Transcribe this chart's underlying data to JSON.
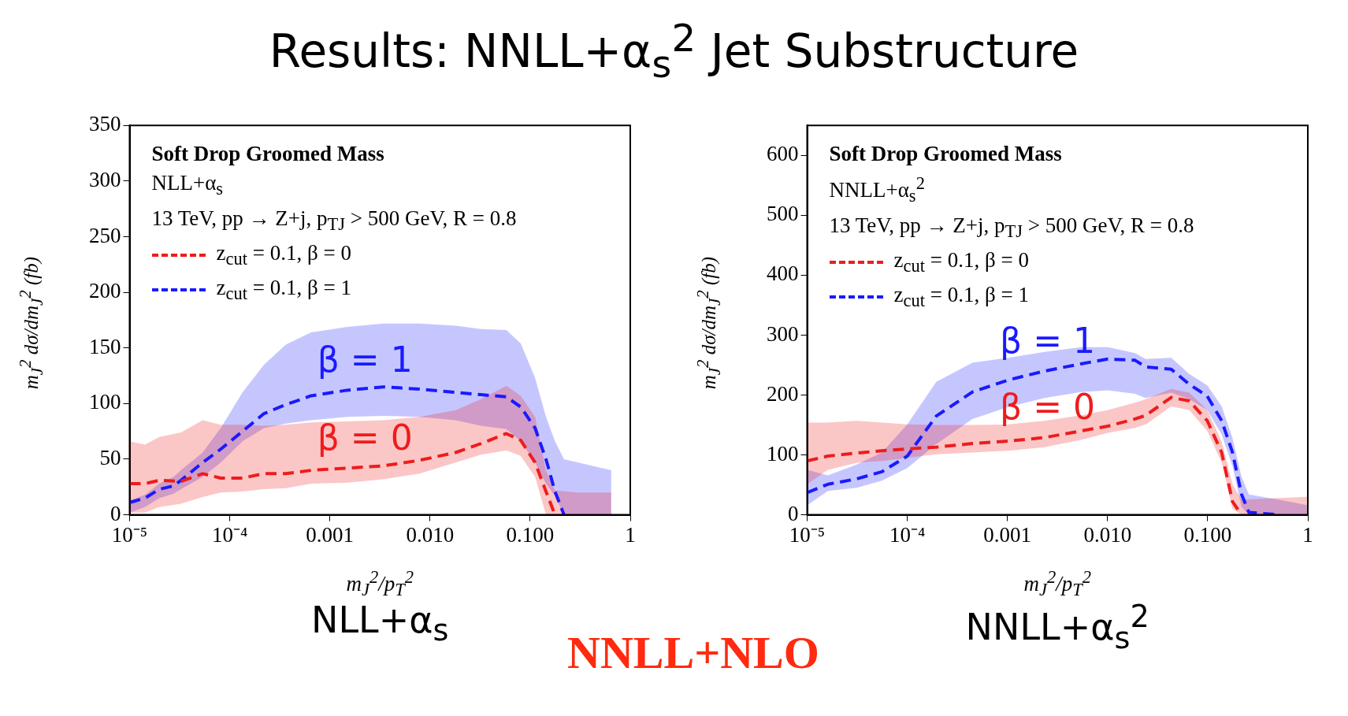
{
  "chart_data": [
    {
      "type": "other",
      "title": "Results: NNLL+α$_{s}$$^{2}$ Jet Substructure",
      "annotations": [
        "NNLL+NLO"
      ]
    },
    {
      "type": "line",
      "title": "Soft Drop Groomed Mass",
      "subtitle": "NLL+α$_{s}$",
      "xlabel": "m$_{J}$$^{2}$/p$_{T}$$^{2}$",
      "ylabel": "m$_{J}$$^{2}$ dσ/dm$_{J}$$^{2}$ (fb)",
      "log": "x",
      "grid": false,
      "legend": "top left",
      "xlim": [
        1e-05,
        1
      ],
      "xticks": [
        {
          "value": 1e-05,
          "label": "10⁻⁵"
        },
        {
          "value": 0.0001,
          "label": "10⁻⁴"
        },
        {
          "value": 0.001,
          "label": "0.001"
        },
        {
          "value": 0.01,
          "label": "0.010"
        },
        {
          "value": 0.1,
          "label": "0.100"
        },
        {
          "value": 1,
          "label": "1"
        }
      ],
      "ylim": [
        0,
        350
      ],
      "yticks": [
        0,
        50,
        100,
        150,
        200,
        250,
        300,
        350
      ],
      "series": [
        {
          "name": "z$_{cut}$ = 0.1, β = 0",
          "color": "#ee1c1c",
          "line_style": "dashed",
          "x": [
            1e-05,
            1.42e-05,
            1.98e-05,
            3.26e-05,
            5.36e-05,
            8.13e-05,
            0.000134,
            0.00022,
            0.000363,
            0.000649,
            0.00149,
            0.00342,
            0.00785,
            0.018,
            0.0323,
            0.0578,
            0.0805,
            0.112,
            0.144,
            0.177,
            0.3,
            0.646
          ],
          "values": [
            28,
            28,
            31,
            30,
            37,
            33,
            33,
            37,
            37,
            40,
            42,
            44,
            49,
            56,
            64,
            73,
            67,
            47,
            21,
            0,
            null,
            null
          ],
          "upper": [
            66,
            63,
            70,
            74,
            85,
            81,
            81,
            80,
            81,
            83,
            84,
            85,
            88,
            94,
            104,
            116,
            107,
            88,
            40,
            22,
            20,
            20
          ],
          "lower": [
            2,
            2,
            7,
            10,
            16,
            20,
            21,
            23,
            24,
            28,
            29,
            32,
            37,
            47,
            54,
            58,
            53,
            34,
            0,
            0,
            0,
            0
          ]
        },
        {
          "name": "z$_{cut}$ = 0.1, β = 1",
          "color": "#1a1aff",
          "line_style": "dashed",
          "x": [
            1e-05,
            1.42e-05,
            1.98e-05,
            2.75e-05,
            3.26e-05,
            5.36e-05,
            8.13e-05,
            0.000134,
            0.00022,
            0.000363,
            0.000649,
            0.00149,
            0.00342,
            0.00785,
            0.018,
            0.0323,
            0.0578,
            0.0805,
            0.112,
            0.144,
            0.177,
            0.218,
            0.646
          ],
          "values": [
            11,
            15,
            23,
            26,
            31,
            47,
            59,
            75,
            91,
            99,
            107,
            112,
            115,
            113,
            110,
            108,
            106,
            97,
            78,
            50,
            21,
            0,
            null
          ],
          "upper": [
            13,
            18,
            28,
            34,
            40,
            56,
            78,
            110,
            135,
            153,
            164,
            169,
            172,
            172,
            170,
            167,
            166,
            154,
            123,
            88,
            66,
            50,
            40
          ],
          "lower": [
            2,
            7,
            15,
            19,
            23,
            34,
            47,
            66,
            78,
            82,
            85,
            88,
            89,
            88,
            85,
            80,
            77,
            66,
            47,
            28,
            17,
            0,
            0
          ]
        }
      ],
      "annotations": [
        "13 TeV, pp → Z+j, p$_{TJ}$ > 500 GeV, R = 0.8",
        "β = 0",
        "β = 1",
        "NLL+α$_{s}$"
      ]
    },
    {
      "type": "line",
      "title": "Soft Drop Groomed Mass",
      "subtitle": "NNLL+α$_{s}$$^{2}$",
      "xlabel": "m$_{J}$$^{2}$/p$_{T}$$^{2}$",
      "ylabel": "m$_{J}$$^{2}$ dσ/dm$_{J}$$^{2}$ (fb)",
      "log": "x",
      "grid": false,
      "legend": "top left",
      "xlim": [
        1e-05,
        1
      ],
      "xticks": [
        {
          "value": 1e-05,
          "label": "10⁻⁵"
        },
        {
          "value": 0.0001,
          "label": "10⁻⁴"
        },
        {
          "value": 0.001,
          "label": "0.001"
        },
        {
          "value": 0.01,
          "label": "0.010"
        },
        {
          "value": 0.1,
          "label": "0.100"
        },
        {
          "value": 1,
          "label": "1"
        }
      ],
      "ylim": [
        0,
        650
      ],
      "yticks": [
        0,
        100,
        200,
        300,
        400,
        500,
        600
      ],
      "series": [
        {
          "name": "z$_{cut}$ = 0.1, β = 0",
          "color": "#ee1c1c",
          "line_style": "dashed",
          "x": [
            1e-05,
            1.61e-05,
            3.13e-05,
            5.58e-05,
            0.0001,
            0.000195,
            0.000447,
            0.00102,
            0.00235,
            0.00541,
            0.0101,
            0.0188,
            0.0241,
            0.0432,
            0.0655,
            0.0991,
            0.138,
            0.177,
            0.218,
            0.5,
            1
          ],
          "values": [
            90,
            98,
            103,
            107,
            110,
            113,
            119,
            123,
            129,
            140,
            148,
            160,
            166,
            196,
            190,
            157,
            104,
            22,
            0,
            null,
            null
          ],
          "upper": [
            154,
            154,
            157,
            154,
            151,
            150,
            150,
            151,
            157,
            166,
            175,
            187,
            193,
            210,
            204,
            175,
            122,
            51,
            25,
            28,
            30
          ],
          "lower": [
            51,
            75,
            87,
            90,
            95,
            101,
            104,
            107,
            113,
            125,
            137,
            145,
            151,
            181,
            175,
            140,
            87,
            10,
            0,
            0,
            0
          ]
        },
        {
          "name": "z$_{cut}$ = 0.1, β = 1",
          "color": "#1a1aff",
          "line_style": "dashed",
          "x": [
            1e-05,
            1.61e-05,
            3.13e-05,
            5.58e-05,
            0.0001,
            0.000195,
            0.000447,
            0.00102,
            0.00235,
            0.00541,
            0.0101,
            0.0188,
            0.0241,
            0.0432,
            0.0655,
            0.0991,
            0.138,
            0.177,
            0.218,
            0.258,
            0.522,
            1
          ],
          "values": [
            37,
            51,
            60,
            72,
            98,
            165,
            205,
            225,
            240,
            252,
            260,
            258,
            247,
            243,
            218,
            198,
            157,
            104,
            34,
            4,
            0,
            null
          ],
          "upper": [
            75,
            66,
            84,
            104,
            151,
            222,
            254,
            262,
            272,
            280,
            280,
            270,
            260,
            262,
            235,
            216,
            181,
            128,
            63,
            34,
            25,
            16
          ],
          "lower": [
            16,
            40,
            45,
            57,
            78,
            118,
            160,
            180,
            195,
            205,
            208,
            202,
            195,
            204,
            193,
            175,
            134,
            81,
            13,
            0,
            0,
            0
          ]
        }
      ],
      "annotations": [
        "13 TeV, pp → Z+j, p$_{TJ}$ > 500 GeV, R = 0.8",
        "β = 0",
        "β = 1",
        "NNLL+α$_{s}$$^{2}$"
      ]
    }
  ]
}
